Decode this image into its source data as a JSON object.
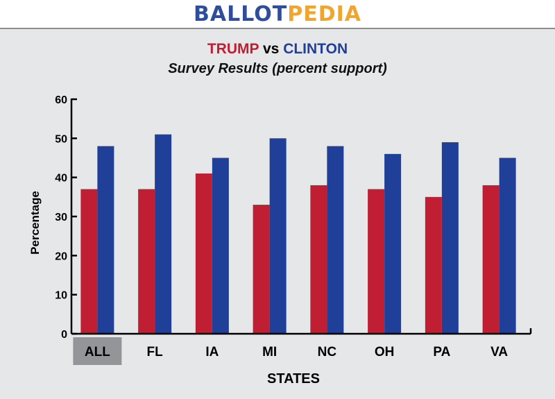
{
  "header": {
    "logo_part1": "BALLOT",
    "logo_part2": "PEDIA",
    "logo_color1": "#2e4d9b",
    "logo_color2": "#f0a62e"
  },
  "title": {
    "name1": "TRUMP",
    "connector": "vs",
    "name2": "CLINTON",
    "subtitle": "Survey Results (percent support)"
  },
  "colors": {
    "trump": "#c01e32",
    "clinton": "#1f3f99",
    "highlight_box": "#939598"
  },
  "chart_data": {
    "type": "bar",
    "title": "TRUMP vs CLINTON",
    "subtitle": "Survey Results (percent support)",
    "xlabel": "STATES",
    "ylabel": "Percentage",
    "categories": [
      "ALL",
      "FL",
      "IA",
      "MI",
      "NC",
      "OH",
      "PA",
      "VA"
    ],
    "highlighted_category": "ALL",
    "series": [
      {
        "values": [
          37,
          37,
          41,
          33,
          38,
          37,
          35,
          38
        ]
      },
      {
        "values": [
          48,
          51,
          45,
          50,
          48,
          46,
          49,
          45
        ]
      }
    ],
    "ylim": [
      0,
      60
    ],
    "yticks": [
      0,
      10,
      20,
      30,
      40,
      50,
      60
    ],
    "grid": false,
    "legend": "none"
  }
}
